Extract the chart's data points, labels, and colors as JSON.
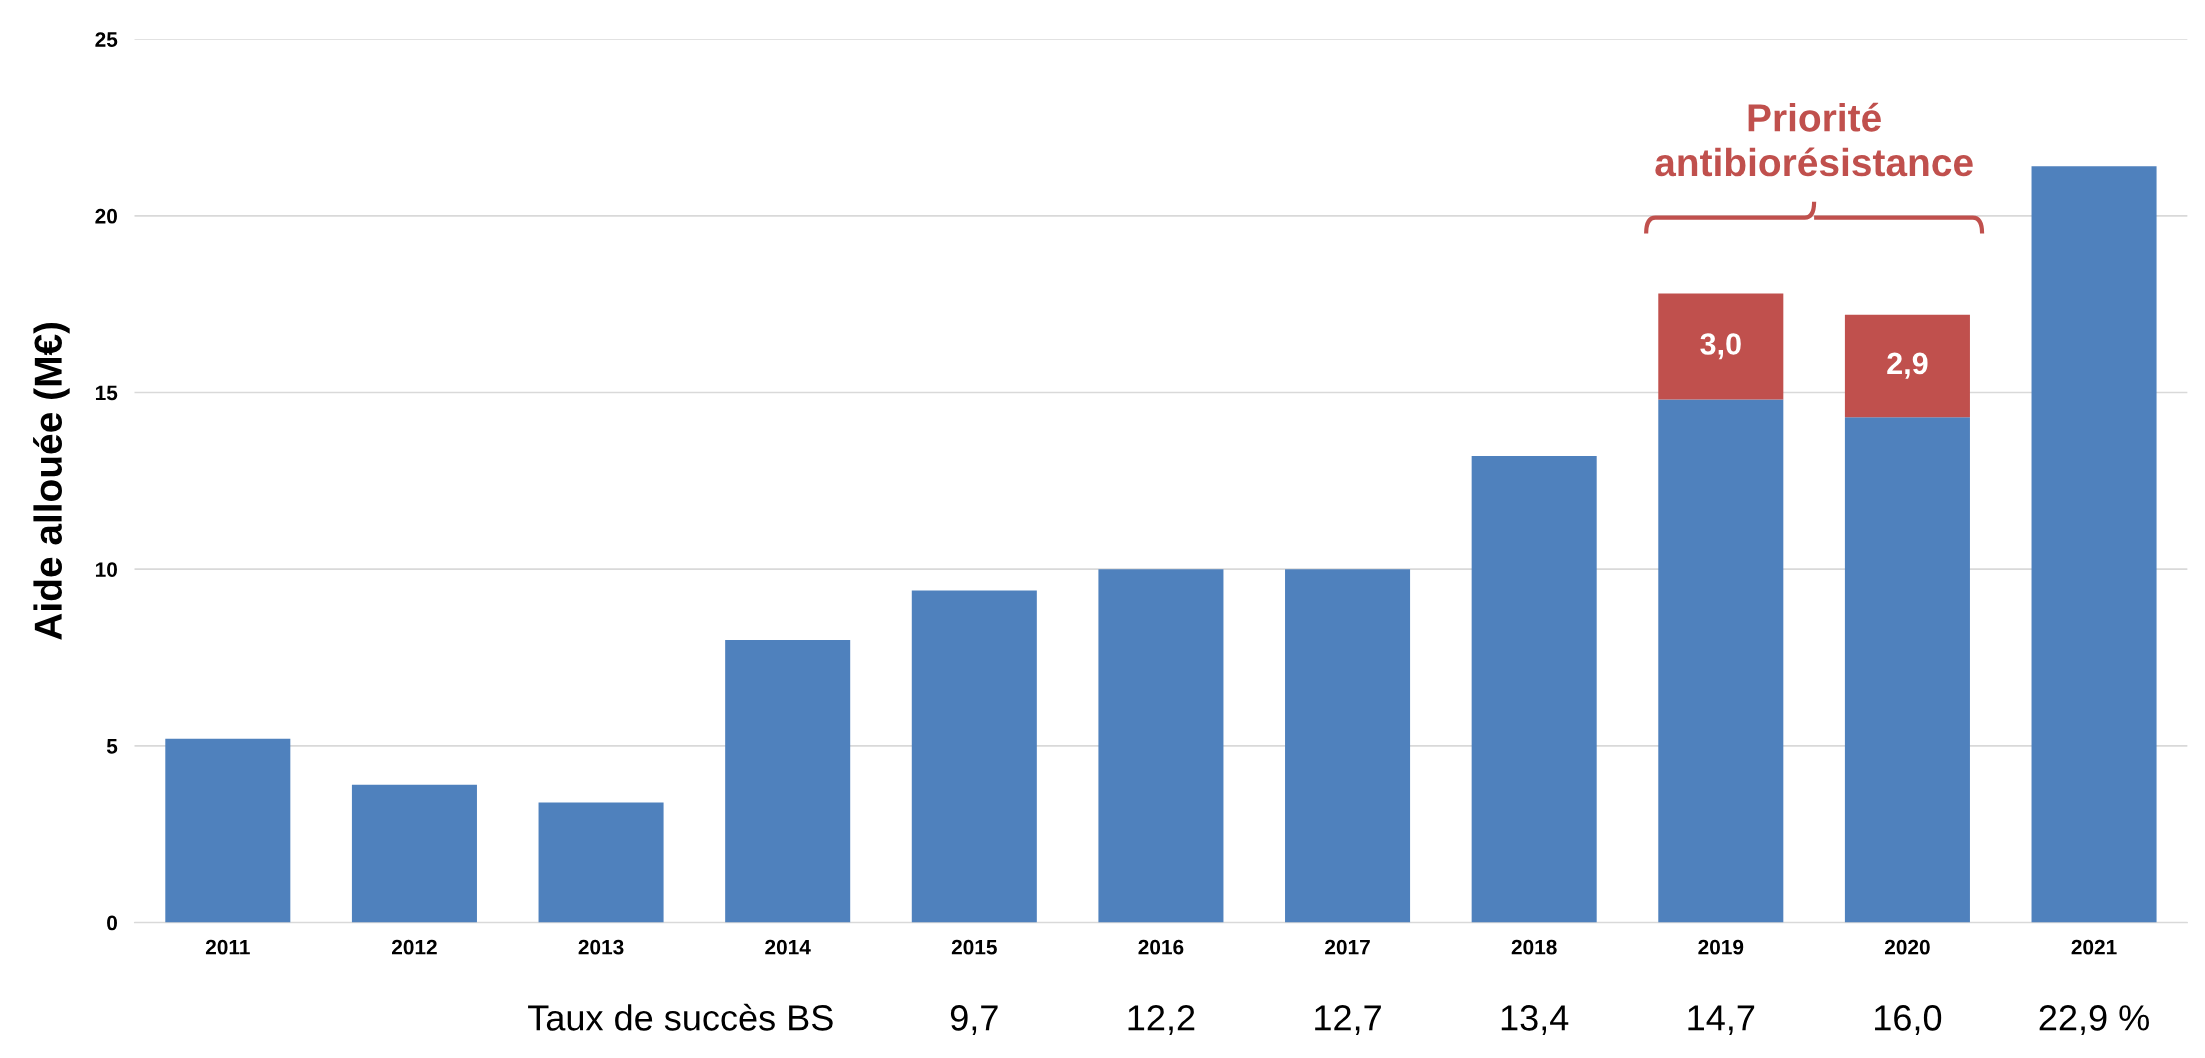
{
  "chart_data": {
    "type": "bar",
    "ylabel": "Aide allouée (M€)",
    "categories": [
      "2011",
      "2012",
      "2013",
      "2014",
      "2015",
      "2016",
      "2017",
      "2018",
      "2019",
      "2020",
      "2021"
    ],
    "series": [
      {
        "color": "#4f81bd",
        "values": [
          5.2,
          3.9,
          3.4,
          8.0,
          9.4,
          10.0,
          10.0,
          13.2,
          14.8,
          14.3,
          21.4
        ]
      },
      {
        "color": "#c0504d",
        "values": [
          null,
          null,
          null,
          null,
          null,
          null,
          null,
          null,
          3.0,
          2.9,
          null
        ],
        "value_labels": [
          null,
          null,
          null,
          null,
          null,
          null,
          null,
          null,
          "3,0",
          "2,9",
          null
        ]
      }
    ],
    "stacked": true,
    "ylim": [
      0,
      25
    ],
    "yticks": [
      0,
      5,
      10,
      15,
      20,
      25
    ],
    "grid": "y",
    "legend": false,
    "annotations": [
      "Priorité\nantibiorésistance",
      "Taux de succès BS",
      "9,7",
      "12,2",
      "12,7",
      "13,4",
      "14,7",
      "16,0",
      "22,9 %"
    ]
  }
}
